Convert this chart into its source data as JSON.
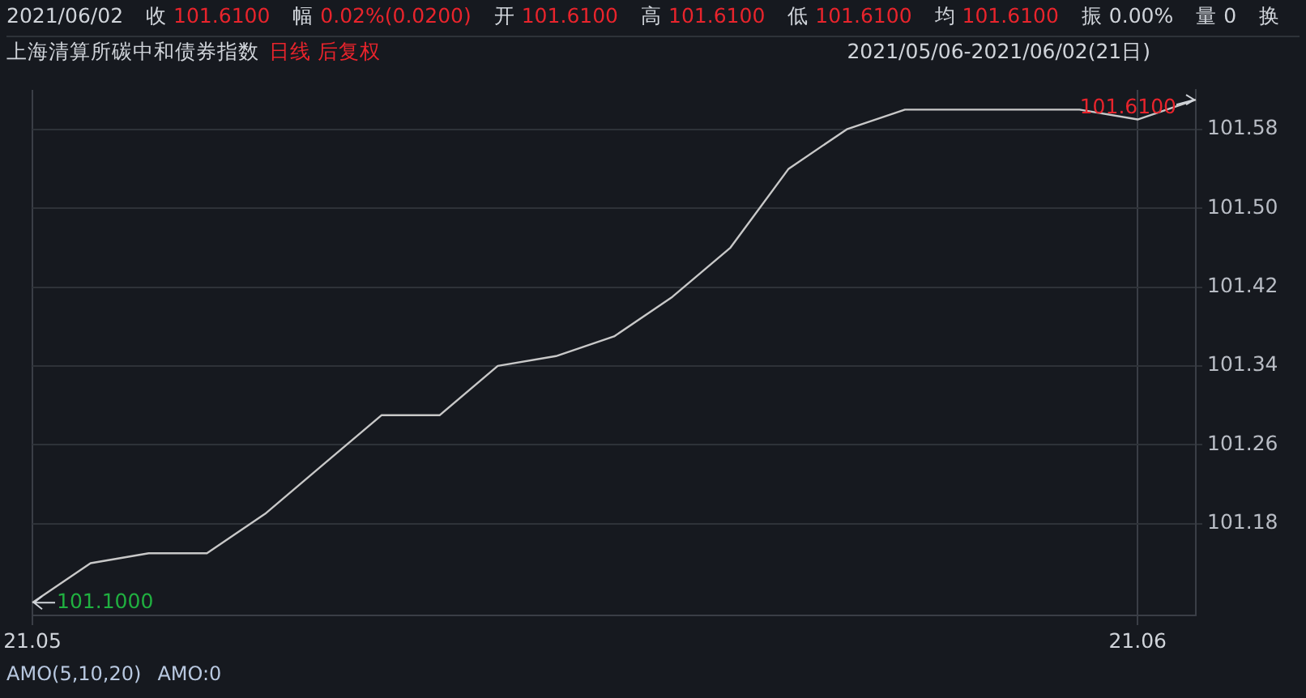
{
  "chart_data": {
    "type": "line",
    "title": "上海清算所碳中和债券指数",
    "subtitle": "日线 后复权",
    "annotations": [
      "2021/06/02",
      "收 101.6100",
      "幅 0.02%(0.0200)",
      "开 101.6100",
      "高 101.6100",
      "低 101.6100",
      "均 101.6100",
      "振 0.00%",
      "量 0",
      "换",
      "2021/05/06-2021/06/02(21日)",
      "AMO(5,10,20)",
      "AMO:0",
      "101.1000",
      "101.6100"
    ],
    "categories": [
      "21.05",
      null,
      null,
      null,
      null,
      null,
      null,
      null,
      null,
      null,
      null,
      null,
      null,
      null,
      null,
      null,
      null,
      null,
      null,
      "21.06",
      null
    ],
    "series": [
      {
        "color": "#c8c8c8",
        "values": [
          101.1,
          101.14,
          101.15,
          101.15,
          101.19,
          101.24,
          101.29,
          101.29,
          101.34,
          101.35,
          101.37,
          101.41,
          101.46,
          101.54,
          101.58,
          101.6,
          101.6,
          101.6,
          101.6,
          101.59,
          101.61
        ]
      }
    ],
    "ylim": [
      101.087,
      101.62
    ],
    "yticks": [
      101.18,
      101.26,
      101.34,
      101.42,
      {
        "value": 101.5,
        "label": "101.50"
      },
      101.58
    ],
    "grid": true,
    "legend": false,
    "marker": "none",
    "line_style": "solid"
  }
}
